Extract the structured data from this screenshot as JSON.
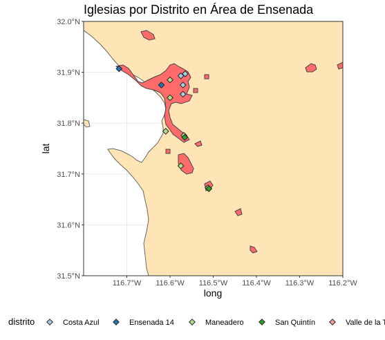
{
  "chart_data": {
    "type": "scatter",
    "title": "Iglesias por Distrito en Área de Ensenada",
    "xlabel": "long",
    "ylabel": "lat",
    "xlim": [
      -116.8,
      -116.2
    ],
    "ylim": [
      31.5,
      32.0
    ],
    "x_ticks": [
      {
        "value": -116.7,
        "label": "116.7°W"
      },
      {
        "value": -116.6,
        "label": "116.6°W"
      },
      {
        "value": -116.5,
        "label": "116.5°W"
      },
      {
        "value": -116.4,
        "label": "116.4°W"
      },
      {
        "value": -116.3,
        "label": "116.3°W"
      },
      {
        "value": -116.2,
        "label": "116.2°W"
      }
    ],
    "y_ticks": [
      {
        "value": 31.5,
        "label": "31.5°N"
      },
      {
        "value": 31.6,
        "label": "31.6°N"
      },
      {
        "value": 31.7,
        "label": "31.7°N"
      },
      {
        "value": 31.8,
        "label": "31.8°N"
      },
      {
        "value": 31.9,
        "label": "31.9°N"
      },
      {
        "value": 32.0,
        "label": "32.0°N"
      }
    ],
    "grid": true,
    "legend": {
      "title": "distrito",
      "placement": "bottom"
    },
    "colors": {
      "land": "#ffe4b5",
      "urban": "#ff6b6b",
      "sea": "#ffffff",
      "outline": "#555555"
    },
    "series": [
      {
        "name": "Costa Azul",
        "color": "#a6cee3",
        "points": [
          [
            -116.575,
            31.893
          ],
          [
            -116.565,
            31.897
          ],
          [
            -116.57,
            31.875
          ],
          [
            -116.57,
            31.857
          ]
        ]
      },
      {
        "name": "Ensenada 14",
        "color": "#1f78b4",
        "points": [
          [
            -116.718,
            31.907
          ],
          [
            -116.62,
            31.875
          ]
        ]
      },
      {
        "name": "Maneadero",
        "color": "#b2df8a",
        "points": [
          [
            -116.6,
            31.885
          ],
          [
            -116.6,
            31.85
          ],
          [
            -116.61,
            31.784
          ],
          [
            -116.568,
            31.776
          ],
          [
            -116.575,
            31.716
          ],
          [
            -116.512,
            31.673
          ]
        ]
      },
      {
        "name": "San Quintín",
        "color": "#33a02c",
        "points": [
          [
            -116.566,
            31.772
          ],
          [
            -116.51,
            31.671
          ]
        ]
      },
      {
        "name": "Valle de la Trinidad",
        "color": "#fb9a99",
        "points": []
      }
    ]
  }
}
